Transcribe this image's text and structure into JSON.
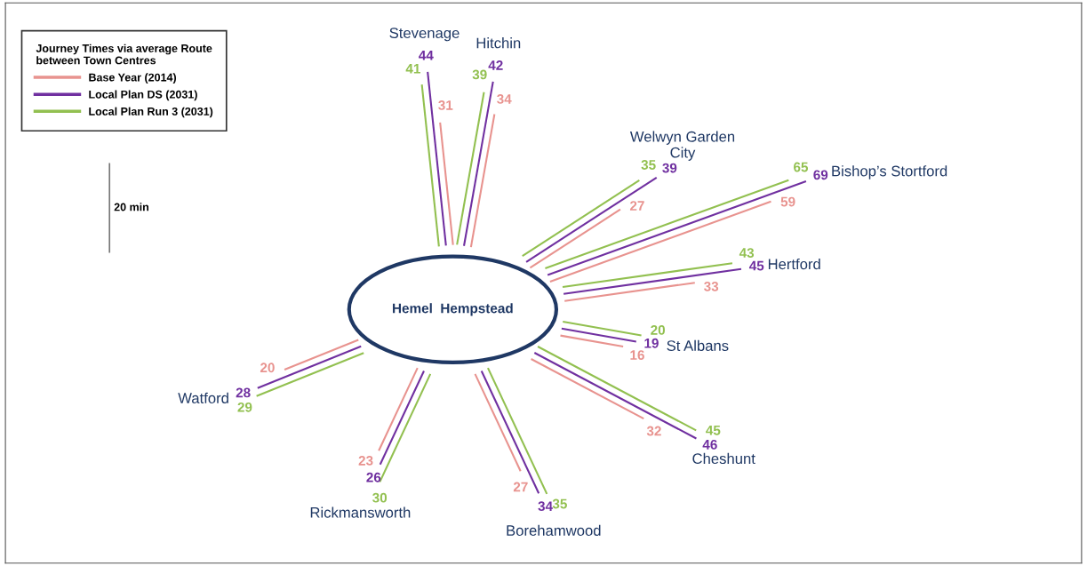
{
  "chart_data": {
    "type": "other",
    "legend_title": "Journey Times via average Route\nbetween Town Centres",
    "categories": [
      "Stevenage",
      "Hitchin",
      "Welwyn Garden\nCity",
      "Bishop’s Stortford",
      "Hertford",
      "St Albans",
      "Cheshunt",
      "Borehamwood",
      "Rickmansworth",
      "Watford"
    ],
    "series": [
      {
        "name": "Base Year (2014)",
        "color": "#e8938f",
        "values": [
          31,
          34,
          27,
          59,
          33,
          16,
          32,
          27,
          23,
          20
        ]
      },
      {
        "name": "Local Plan DS (2031)",
        "color": "#7030a0",
        "values": [
          44,
          42,
          39,
          69,
          45,
          19,
          46,
          34,
          26,
          28
        ]
      },
      {
        "name": "Local Plan Run 3 (2031)",
        "color": "#92c050",
        "values": [
          41,
          39,
          35,
          65,
          43,
          20,
          45,
          35,
          30,
          29
        ]
      }
    ],
    "annotations": [
      "Hemel  Hempstead",
      "20 min"
    ],
    "data_labels": true,
    "legend": "top left"
  }
}
